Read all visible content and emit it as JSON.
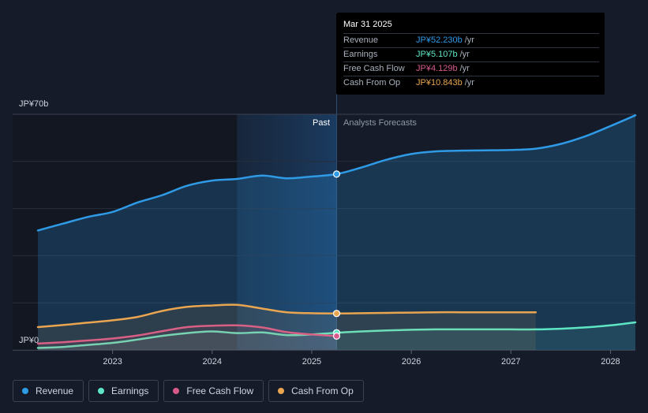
{
  "chart_data": {
    "type": "line",
    "title": "",
    "ylabel": "",
    "ylim": [
      0,
      70
    ],
    "y_tick_labels": [
      "JP¥0",
      "JP¥70b"
    ],
    "xlim": [
      2022.25,
      2028.25
    ],
    "x_ticks": [
      2023,
      2024,
      2025,
      2026,
      2027,
      2028
    ],
    "x_tick_labels": [
      "2023",
      "2024",
      "2025",
      "2026",
      "2027",
      "2028"
    ],
    "divider_x": 2025.25,
    "past_shade_start": 2024.25,
    "past_label": "Past",
    "forecast_label": "Analysts Forecasts",
    "series": [
      {
        "name": "Revenue",
        "color": "#2f9ae6",
        "fill": true,
        "x": [
          2022.25,
          2022.5,
          2022.75,
          2023.0,
          2023.25,
          2023.5,
          2023.75,
          2024.0,
          2024.25,
          2024.5,
          2024.75,
          2025.0,
          2025.25,
          2025.5,
          2025.75,
          2026.0,
          2026.25,
          2026.5,
          2026.75,
          2027.0,
          2027.25,
          2027.5,
          2027.75,
          2028.0,
          2028.25
        ],
        "values": [
          35.5,
          37.5,
          39.5,
          41.0,
          43.8,
          46.0,
          48.8,
          50.3,
          50.8,
          51.8,
          51.0,
          51.5,
          52.23,
          54.2,
          56.5,
          58.2,
          59.0,
          59.2,
          59.3,
          59.4,
          59.8,
          61.2,
          63.5,
          66.5,
          69.7
        ]
      },
      {
        "name": "Earnings",
        "color": "#5ee6c4",
        "fill": true,
        "x": [
          2022.25,
          2022.5,
          2022.75,
          2023.0,
          2023.25,
          2023.5,
          2023.75,
          2024.0,
          2024.25,
          2024.5,
          2024.75,
          2025.0,
          2025.25,
          2025.5,
          2025.75,
          2026.0,
          2026.25,
          2026.5,
          2026.75,
          2027.0,
          2027.25,
          2027.5,
          2027.75,
          2028.0,
          2028.25
        ],
        "values": [
          0.6,
          0.9,
          1.5,
          2.1,
          3.1,
          4.2,
          5.0,
          5.5,
          5.0,
          5.2,
          4.4,
          4.6,
          5.107,
          5.5,
          5.8,
          6.0,
          6.1,
          6.1,
          6.1,
          6.1,
          6.1,
          6.3,
          6.7,
          7.3,
          8.2
        ]
      },
      {
        "name": "Free Cash Flow",
        "color": "#d6598c",
        "fill": true,
        "x": [
          2022.25,
          2022.5,
          2022.75,
          2023.0,
          2023.25,
          2023.5,
          2023.75,
          2024.0,
          2024.25,
          2024.5,
          2024.75,
          2025.0,
          2025.25
        ],
        "values": [
          1.9,
          2.3,
          2.8,
          3.4,
          4.3,
          5.6,
          6.8,
          7.2,
          7.3,
          6.7,
          5.3,
          4.6,
          4.129
        ]
      },
      {
        "name": "Cash From Op",
        "color": "#e9a54f",
        "fill": true,
        "x": [
          2022.25,
          2022.5,
          2022.75,
          2023.0,
          2023.25,
          2023.5,
          2023.75,
          2024.0,
          2024.25,
          2024.5,
          2024.75,
          2025.0,
          2025.25,
          2025.5,
          2025.75,
          2026.0,
          2026.25,
          2026.5,
          2026.75,
          2027.0,
          2027.25
        ],
        "values": [
          6.8,
          7.4,
          8.1,
          8.8,
          9.8,
          11.6,
          12.8,
          13.2,
          13.4,
          12.3,
          11.2,
          10.9,
          10.843,
          10.9,
          11.0,
          11.1,
          11.2,
          11.2,
          11.2,
          11.2,
          11.2
        ]
      }
    ],
    "highlight_x": 2025.25,
    "legend": [
      "Revenue",
      "Earnings",
      "Free Cash Flow",
      "Cash From Op"
    ]
  },
  "tooltip": {
    "date": "Mar 31 2025",
    "unit": "/yr",
    "rows": [
      {
        "label": "Revenue",
        "value": "JP¥52.230b",
        "color": "#2f9ae6"
      },
      {
        "label": "Earnings",
        "value": "JP¥5.107b",
        "color": "#5ee6c4"
      },
      {
        "label": "Free Cash Flow",
        "value": "JP¥4.129b",
        "color": "#d6598c"
      },
      {
        "label": "Cash From Op",
        "value": "JP¥10.843b",
        "color": "#e9a54f"
      }
    ]
  },
  "legend": {
    "items": [
      {
        "label": "Revenue",
        "color": "#2f9ae6"
      },
      {
        "label": "Earnings",
        "color": "#5ee6c4"
      },
      {
        "label": "Free Cash Flow",
        "color": "#d6598c"
      },
      {
        "label": "Cash From Op",
        "color": "#e9a54f"
      }
    ]
  }
}
